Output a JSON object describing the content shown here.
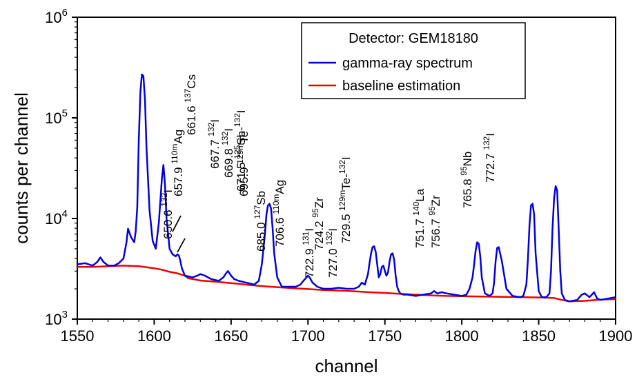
{
  "chart_data": {
    "type": "line",
    "title": "",
    "xlabel": "channel",
    "ylabel": "counts per channel",
    "xlim": [
      1550,
      1900
    ],
    "ylim": [
      1000,
      1000000
    ],
    "yscale": "log",
    "grid": false,
    "legend": {
      "placement": "top-right",
      "title": "Detector: GEM18180",
      "entries": [
        "gamma-ray spectrum",
        "baseline estimation"
      ]
    },
    "x_ticks": [
      "1550",
      "1600",
      "1650",
      "1700",
      "1750",
      "1800",
      "1850",
      "1900"
    ],
    "y_ticks": [
      {
        "base": "10",
        "exp": "3",
        "value": 1000
      },
      {
        "base": "10",
        "exp": "4",
        "value": 10000
      },
      {
        "base": "10",
        "exp": "5",
        "value": 100000
      },
      {
        "base": "10",
        "exp": "6",
        "value": 1000000
      }
    ],
    "series": [
      {
        "name": "gamma-ray spectrum",
        "color": "#0000dd",
        "x": [
          1550,
          1555,
          1560,
          1563,
          1565,
          1567,
          1570,
          1574,
          1577,
          1580,
          1582,
          1583,
          1585,
          1587,
          1588,
          1589,
          1590,
          1591,
          1592,
          1593,
          1594,
          1595,
          1597,
          1599,
          1601,
          1603,
          1605,
          1606,
          1607,
          1608,
          1610,
          1612,
          1614,
          1615,
          1616,
          1617,
          1618,
          1620,
          1625,
          1628,
          1630,
          1633,
          1637,
          1642,
          1645,
          1647,
          1648,
          1650,
          1652,
          1655,
          1660,
          1665,
          1668,
          1670,
          1672,
          1673,
          1674,
          1675,
          1676,
          1677,
          1678,
          1680,
          1683,
          1688,
          1692,
          1695,
          1697,
          1699,
          1700,
          1701,
          1703,
          1706,
          1710,
          1715,
          1720,
          1725,
          1730,
          1733,
          1735,
          1737,
          1738,
          1739,
          1740,
          1741,
          1742,
          1743,
          1744,
          1745,
          1746,
          1747,
          1748,
          1749,
          1750,
          1751,
          1752,
          1753,
          1754,
          1755,
          1756,
          1757,
          1758,
          1759,
          1760,
          1762,
          1765,
          1770,
          1775,
          1780,
          1782,
          1784,
          1787,
          1790,
          1795,
          1800,
          1803,
          1805,
          1807,
          1808,
          1809,
          1810,
          1811,
          1812,
          1813,
          1815,
          1818,
          1820,
          1821,
          1822,
          1823,
          1824,
          1826,
          1829,
          1833,
          1838,
          1840,
          1842,
          1843,
          1844,
          1845,
          1846,
          1847,
          1848,
          1850,
          1852,
          1855,
          1857,
          1858,
          1859,
          1860,
          1861,
          1862,
          1863,
          1864,
          1865,
          1867,
          1870,
          1875,
          1878,
          1880,
          1883,
          1886,
          1888,
          1890,
          1895,
          1900
        ],
        "y": [
          3500,
          3600,
          3400,
          3700,
          4100,
          3700,
          3400,
          3400,
          3600,
          4000,
          5800,
          7900,
          6500,
          5800,
          7500,
          13000,
          60000,
          180000,
          270000,
          260000,
          150000,
          50000,
          12000,
          6000,
          5000,
          9000,
          25000,
          34000,
          22000,
          10000,
          5000,
          4400,
          4200,
          4400,
          4300,
          3800,
          3200,
          2700,
          2600,
          2700,
          2800,
          2700,
          2500,
          2400,
          2600,
          2900,
          3000,
          2700,
          2500,
          2400,
          2300,
          2200,
          2400,
          3500,
          7000,
          11000,
          13500,
          14000,
          12500,
          8000,
          4500,
          2600,
          2100,
          2100,
          2100,
          2200,
          2400,
          2600,
          2700,
          2600,
          2300,
          2100,
          2000,
          2000,
          2050,
          2000,
          2000,
          2100,
          2300,
          2200,
          2500,
          2800,
          3600,
          4500,
          5200,
          5300,
          4700,
          3500,
          2600,
          2800,
          3300,
          3400,
          3000,
          2700,
          2900,
          3700,
          4400,
          4500,
          3900,
          2700,
          2100,
          1900,
          1800,
          1750,
          1750,
          1700,
          1750,
          1800,
          1900,
          1800,
          1850,
          1800,
          1750,
          1700,
          1750,
          2000,
          2600,
          3500,
          4800,
          5800,
          5600,
          4200,
          2600,
          1800,
          1700,
          1800,
          2300,
          3800,
          5100,
          5200,
          3800,
          2000,
          1700,
          1650,
          1700,
          2200,
          4000,
          8500,
          13500,
          14000,
          11000,
          4500,
          1900,
          1650,
          1650,
          1800,
          3000,
          8000,
          16000,
          21000,
          19000,
          8000,
          3000,
          1800,
          1550,
          1500,
          1550,
          1750,
          1800,
          1650,
          1850,
          1600,
          1550,
          1600,
          1650
        ]
      },
      {
        "name": "baseline estimation",
        "color": "#ee0000",
        "x": [
          1550,
          1560,
          1570,
          1580,
          1590,
          1600,
          1605,
          1610,
          1615,
          1620,
          1622,
          1625,
          1630,
          1640,
          1650,
          1660,
          1670,
          1680,
          1690,
          1700,
          1710,
          1720,
          1730,
          1740,
          1750,
          1760,
          1770,
          1780,
          1790,
          1800,
          1810,
          1820,
          1830,
          1840,
          1850,
          1860,
          1865,
          1870,
          1880,
          1890,
          1900
        ],
        "y": [
          3300,
          3300,
          3350,
          3400,
          3350,
          3200,
          3100,
          2950,
          2850,
          2700,
          2550,
          2500,
          2420,
          2350,
          2280,
          2200,
          2130,
          2080,
          2030,
          1990,
          1950,
          1920,
          1890,
          1850,
          1820,
          1780,
          1750,
          1720,
          1700,
          1690,
          1680,
          1670,
          1660,
          1650,
          1640,
          1620,
          1550,
          1500,
          1520,
          1560,
          1580
        ]
      }
    ],
    "peak_annotations": [
      {
        "energy": "650.6",
        "iso": "132",
        "elem": "I",
        "channel": 1565
      },
      {
        "energy": "657.9",
        "iso": "110m",
        "elem": "Ag",
        "channel": 1583
      },
      {
        "energy": "661.6",
        "iso": "137",
        "elem": "Cs",
        "channel": 1592
      },
      {
        "energy": "667.7",
        "iso": "132",
        "elem": "I",
        "channel": 1606
      },
      {
        "energy": "669.8",
        "iso": "132",
        "elem": "I",
        "channel": 1614
      },
      {
        "energy": "671.5",
        "iso": "125",
        "elem": "Sb-",
        "iso2": "132",
        "elem2": "I",
        "channel": 1618
      },
      {
        "energy": "685.0",
        "iso": "127",
        "elem": "Sb",
        "channel": 1648
      },
      {
        "energy": "695.9",
        "iso": "129m",
        "elem": "Te",
        "channel": 1675
      },
      {
        "energy": "706.6",
        "iso": "110m",
        "elem": "Ag",
        "channel": 1700
      },
      {
        "energy": "722.9",
        "iso": "131",
        "elem": "I",
        "channel": 1736
      },
      {
        "energy": "724.2",
        "iso": "95",
        "elem": "Zr",
        "channel": 1743
      },
      {
        "energy": "727.0",
        "iso": "132",
        "elem": "I",
        "channel": 1748
      },
      {
        "energy": "729.5",
        "iso": "129m",
        "elem": "Te-",
        "iso2": "132",
        "elem2": "I",
        "channel": 1756
      },
      {
        "energy": "751.7",
        "iso": "140",
        "elem": "La",
        "channel": 1810
      },
      {
        "energy": "756.7",
        "iso": "95",
        "elem": "Zr",
        "channel": 1822
      },
      {
        "energy": "765.8",
        "iso": "95",
        "elem": "Nb",
        "channel": 1845
      },
      {
        "energy": "772.7",
        "iso": "132",
        "elem": "I",
        "channel": 1861
      }
    ]
  }
}
